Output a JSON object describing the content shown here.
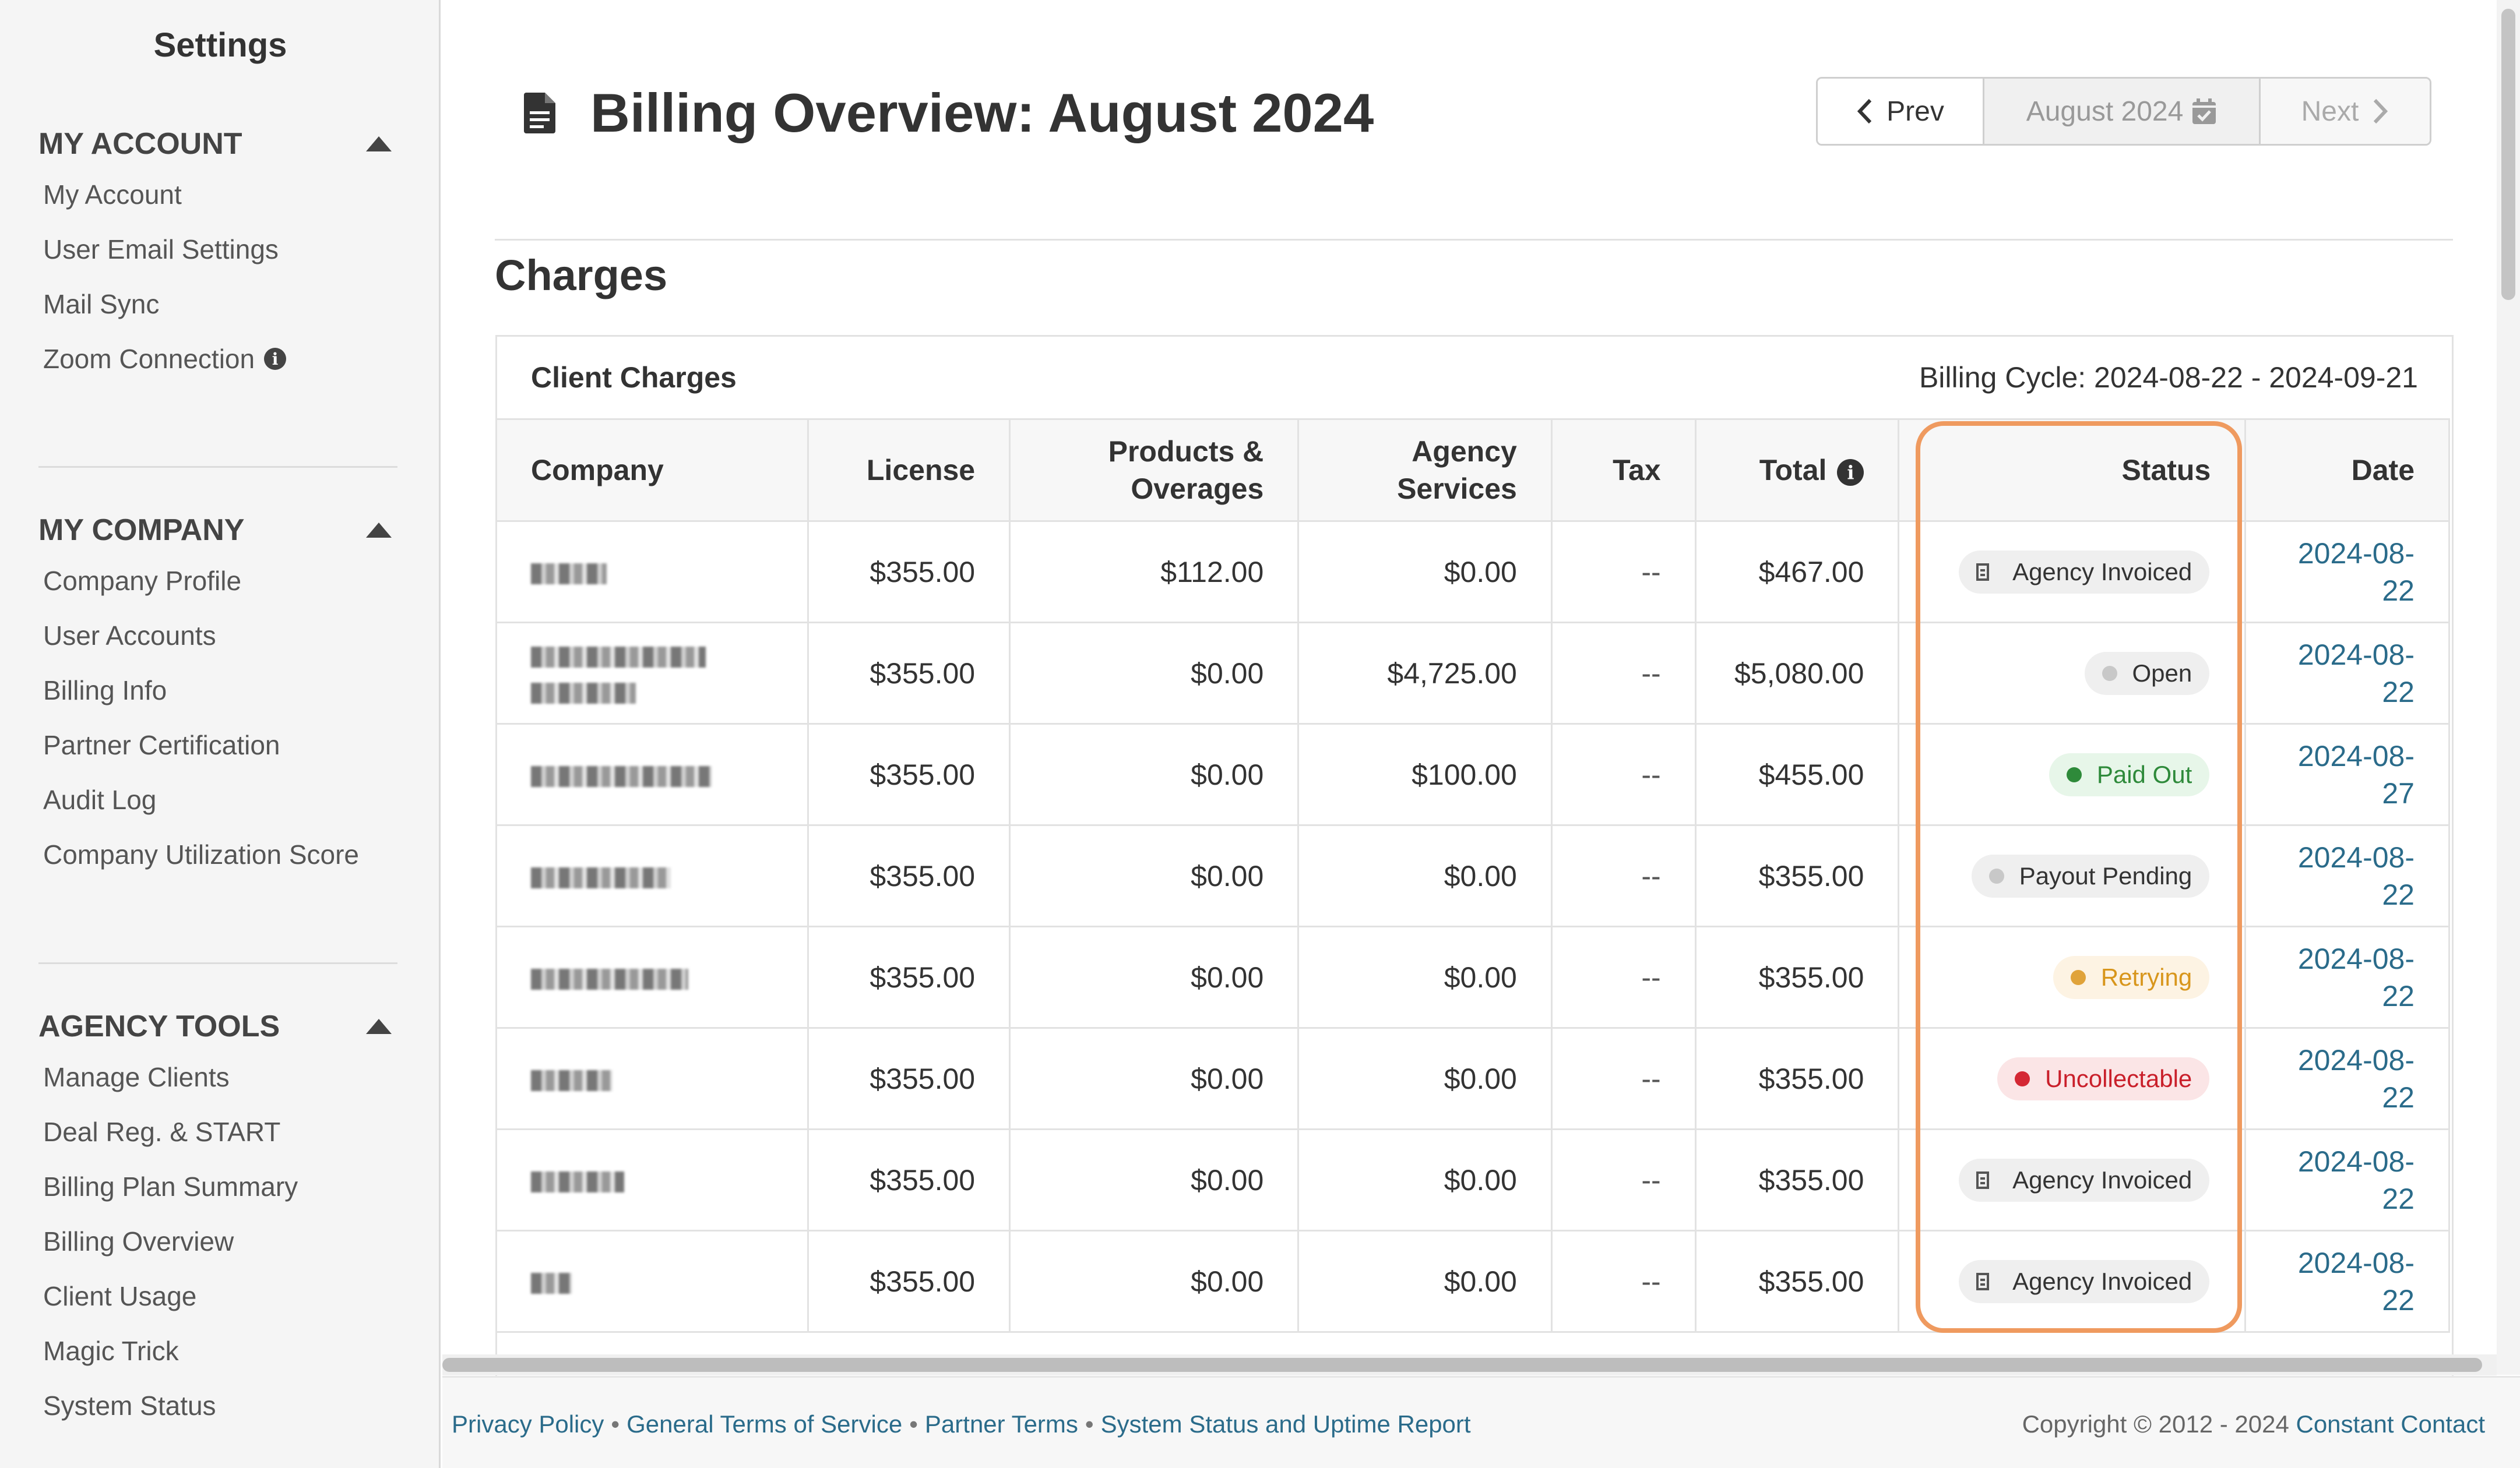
{
  "sidebar": {
    "title": "Settings",
    "sections": [
      {
        "heading": "MY ACCOUNT",
        "items": [
          "My Account",
          "User Email Settings",
          "Mail Sync",
          "Zoom Connection"
        ]
      },
      {
        "heading": "MY COMPANY",
        "items": [
          "Company Profile",
          "User Accounts",
          "Billing Info",
          "Partner Certification",
          "Audit Log",
          "Company Utilization Score"
        ]
      },
      {
        "heading": "AGENCY TOOLS",
        "items": [
          "Manage Clients",
          "Deal Reg. & START",
          "Billing Plan Summary",
          "Billing Overview",
          "Client Usage",
          "Magic Trick",
          "System Status"
        ]
      }
    ]
  },
  "header": {
    "title": "Billing Overview: August 2024",
    "prev_label": "Prev",
    "month_label": "August 2024",
    "next_label": "Next"
  },
  "charges": {
    "heading": "Charges",
    "card_title": "Client Charges",
    "billing_cycle": "Billing Cycle: 2024-08-22 - 2024-09-21",
    "columns": [
      "Company",
      "License",
      "Products & Overages",
      "Agency Services",
      "Tax",
      "Total",
      "Status",
      "Date"
    ],
    "rows": [
      {
        "license": "$355.00",
        "products": "$112.00",
        "agency": "$0.00",
        "tax": "--",
        "total": "$467.00",
        "status": "Agency Invoiced",
        "date": "2024-08-22"
      },
      {
        "license": "$355.00",
        "products": "$0.00",
        "agency": "$4,725.00",
        "tax": "--",
        "total": "$5,080.00",
        "status": "Open",
        "date": "2024-08-22"
      },
      {
        "license": "$355.00",
        "products": "$0.00",
        "agency": "$100.00",
        "tax": "--",
        "total": "$455.00",
        "status": "Paid Out",
        "date": "2024-08-27"
      },
      {
        "license": "$355.00",
        "products": "$0.00",
        "agency": "$0.00",
        "tax": "--",
        "total": "$355.00",
        "status": "Payout Pending",
        "date": "2024-08-22"
      },
      {
        "license": "$355.00",
        "products": "$0.00",
        "agency": "$0.00",
        "tax": "--",
        "total": "$355.00",
        "status": "Retrying",
        "date": "2024-08-22"
      },
      {
        "license": "$355.00",
        "products": "$0.00",
        "agency": "$0.00",
        "tax": "--",
        "total": "$355.00",
        "status": "Uncollectable",
        "date": "2024-08-22"
      },
      {
        "license": "$355.00",
        "products": "$0.00",
        "agency": "$0.00",
        "tax": "--",
        "total": "$355.00",
        "status": "Agency Invoiced",
        "date": "2024-08-22"
      },
      {
        "license": "$355.00",
        "products": "$0.00",
        "agency": "$0.00",
        "tax": "--",
        "total": "$355.00",
        "status": "Agency Invoiced",
        "date": "2024-08-22"
      }
    ]
  },
  "status_colors": {
    "paid": "#2e8a3a",
    "retrying": "#e0a33a",
    "uncollectable": "#d42834",
    "neutral": "#c8c8c8",
    "highlight": "#ef9a5f"
  },
  "footer": {
    "links": [
      "Privacy Policy",
      "General Terms of Service",
      "Partner Terms",
      "System Status and Uptime Report"
    ],
    "copyright": "Copyright © 2012 - 2024",
    "brand": "Constant Contact"
  }
}
